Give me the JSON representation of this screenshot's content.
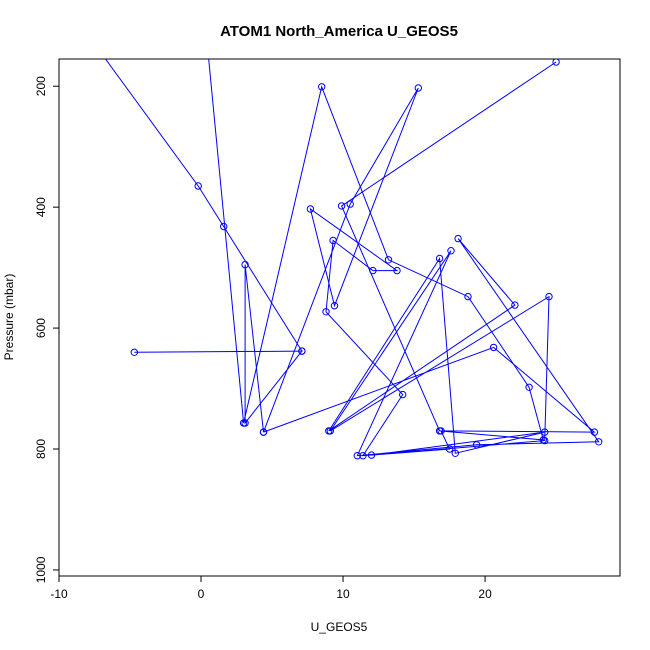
{
  "chart_data": {
    "type": "line",
    "title": "ATOM1 North_America U_GEOS5",
    "xlabel": "U_GEOS5",
    "ylabel": "Pressure (mbar)",
    "xlim": [
      -10,
      29.5
    ],
    "ylim": [
      1010,
      155
    ],
    "y_inverted": true,
    "xticks": [
      -10,
      0,
      10,
      20
    ],
    "yticks": [
      200,
      400,
      600,
      800,
      1000
    ],
    "grid": false,
    "legend": "none",
    "colors": {
      "series": "#0000ff",
      "text": "#000000",
      "background": "#ffffff"
    },
    "series": [
      {
        "x": [
          -7.5,
          -0.2,
          1.6,
          7.1,
          -4.7,
          7.1,
          3.1,
          3.1,
          4.4,
          10.5,
          15.3,
          9.4,
          7.7,
          13.8,
          12.1,
          9.3,
          8.8,
          14.2,
          11.4,
          24.2,
          24.5,
          9.1,
          17.6,
          11.0,
          19.4,
          28.0,
          18.1,
          22.1,
          9.0,
          16.8,
          17.9,
          24.2,
          12.0,
          17.5,
          16.9,
          27.7,
          20.6,
          4.4
        ],
        "y": [
          130,
          365,
          432,
          638,
          640,
          638,
          757,
          495,
          772,
          395,
          203,
          563,
          403,
          505,
          505,
          455,
          573,
          710,
          811,
          786,
          548,
          770,
          472,
          811,
          793,
          788,
          452,
          562,
          770,
          485,
          807,
          772,
          810,
          800,
          770,
          772,
          632,
          772
        ]
      },
      {
        "x": [
          0.5,
          3.0,
          8.5,
          13.2,
          18.8,
          23.1,
          24.1,
          16.8,
          9.9,
          25.0
        ],
        "y": [
          145,
          757,
          201,
          487,
          548,
          698,
          785,
          770,
          398,
          160
        ]
      }
    ]
  }
}
